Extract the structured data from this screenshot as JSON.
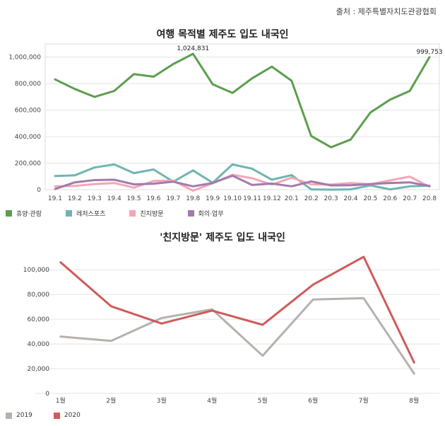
{
  "source": "출처 : 제주특별자치도관광협회",
  "chart_data": [
    {
      "type": "line",
      "title": "여행 목적별 제주도 입도 내국인",
      "categories": [
        "19.1",
        "19.2",
        "19.3",
        "19.4",
        "19.5",
        "19.6",
        "19.7",
        "19.8",
        "19.9",
        "19.10",
        "19.11",
        "19.12",
        "20.1",
        "20.2",
        "20.3",
        "20.4",
        "20.5",
        "20.6",
        "20.7",
        "20.8"
      ],
      "ylim": [
        0,
        1100000
      ],
      "yticks": [
        "1,000,000",
        "800,000",
        "600,000",
        "400,000",
        "200,000",
        "0"
      ],
      "ytick_values": [
        1000000,
        800000,
        600000,
        400000,
        200000,
        0
      ],
      "grid": true,
      "legend_position": "bottom-left",
      "series": [
        {
          "name": "휴양·관람",
          "color": "#5b9e4d",
          "values": [
            832000,
            760000,
            700000,
            745000,
            872000,
            852000,
            948000,
            1024831,
            795000,
            730000,
            840000,
            928000,
            822000,
            405000,
            320000,
            378000,
            582000,
            680000,
            745000,
            999753
          ]
        },
        {
          "name": "레저스포츠",
          "color": "#6fb5b1",
          "values": [
            103000,
            108000,
            167000,
            190000,
            125000,
            152000,
            60000,
            145000,
            52000,
            190000,
            158000,
            75000,
            110000,
            2000,
            0,
            2000,
            32000,
            2000,
            25000,
            30000
          ]
        },
        {
          "name": "친지방문",
          "color": "#f4a6b5",
          "values": [
            25000,
            28000,
            42000,
            50000,
            15000,
            65000,
            68000,
            -8000,
            48000,
            112000,
            86000,
            38000,
            90000,
            40000,
            38000,
            50000,
            40000,
            70000,
            98000,
            22000
          ]
        },
        {
          "name": "회의·업무",
          "color": "#a37aab",
          "values": [
            5000,
            55000,
            72000,
            75000,
            40000,
            45000,
            60000,
            25000,
            50000,
            105000,
            35000,
            46000,
            25000,
            62000,
            32000,
            33000,
            42000,
            50000,
            55000,
            28000
          ]
        }
      ],
      "data_labels": [
        {
          "series": 0,
          "index": 7,
          "text": "1,024,831"
        },
        {
          "series": 0,
          "index": 19,
          "text": "999,753"
        }
      ]
    },
    {
      "type": "line",
      "title": "'친지방문' 제주도 입도 내국인",
      "categories": [
        "1월",
        "2월",
        "3월",
        "4월",
        "5월",
        "6월",
        "7월",
        "8월"
      ],
      "ylim": [
        0,
        115000
      ],
      "yticks": [
        "100,000",
        "80,000",
        "60,000",
        "40,000",
        "20,000",
        "0"
      ],
      "ytick_values": [
        100000,
        80000,
        60000,
        40000,
        20000,
        0
      ],
      "grid": true,
      "legend_position": "bottom-left",
      "series": [
        {
          "name": "2019",
          "color": "#b5b2ae",
          "values": [
            46000,
            42500,
            61000,
            68000,
            30500,
            76000,
            77000,
            16000
          ]
        },
        {
          "name": "2020",
          "color": "#cf5b5b",
          "values": [
            106000,
            70500,
            56500,
            67000,
            55500,
            88000,
            110500,
            25000
          ]
        }
      ]
    }
  ]
}
